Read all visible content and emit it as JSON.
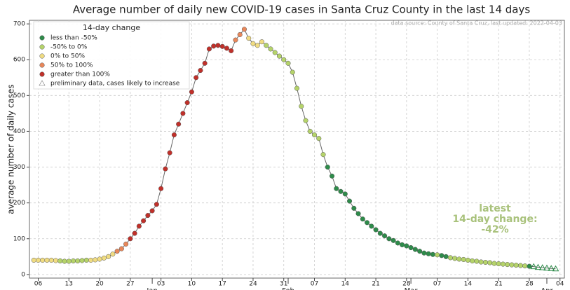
{
  "chart_data": {
    "type": "line",
    "title": "Average number of daily new COVID-19 cases in Santa Cruz County in the last 14 days",
    "source": "data source: County of Santa Cruz, last updated: 2022-04-03",
    "y_label": "average number of daily cases",
    "legend_title": "14-day change",
    "legend": [
      {
        "name": "less than -50%",
        "color": "#2e8b4a",
        "marker": "circle"
      },
      {
        "name": "-50% to 0%",
        "color": "#b5d36a",
        "marker": "circle"
      },
      {
        "name": "0% to 50%",
        "color": "#f0dc82",
        "marker": "circle"
      },
      {
        "name": "50% to 100%",
        "color": "#e8875a",
        "marker": "circle"
      },
      {
        "name": "greater than 100%",
        "color": "#c0302a",
        "marker": "circle"
      },
      {
        "name": "preliminary data, cases likely to increase",
        "color": "#2e8b4a",
        "marker": "triangle"
      }
    ],
    "annotation": [
      "latest",
      "14-day change:",
      "-42%"
    ],
    "annotation_color": "#a9c27c",
    "line_color": "#666666",
    "x": [
      "12-05",
      "12-06",
      "12-07",
      "12-08",
      "12-09",
      "12-10",
      "12-11",
      "12-12",
      "12-13",
      "12-14",
      "12-15",
      "12-16",
      "12-17",
      "12-18",
      "12-19",
      "12-20",
      "12-21",
      "12-22",
      "12-23",
      "12-24",
      "12-25",
      "12-26",
      "12-27",
      "12-28",
      "12-29",
      "12-30",
      "12-31",
      "01-01",
      "01-02",
      "01-03",
      "01-04",
      "01-05",
      "01-06",
      "01-07",
      "01-08",
      "01-09",
      "01-10",
      "01-11",
      "01-12",
      "01-13",
      "01-14",
      "01-15",
      "01-16",
      "01-17",
      "01-18",
      "01-19",
      "01-20",
      "01-21",
      "01-22",
      "01-23",
      "01-24",
      "01-25",
      "01-26",
      "01-27",
      "01-28",
      "01-29",
      "01-30",
      "01-31",
      "02-01",
      "02-02",
      "02-03",
      "02-04",
      "02-05",
      "02-06",
      "02-07",
      "02-08",
      "02-09",
      "02-10",
      "02-11",
      "02-12",
      "02-13",
      "02-14",
      "02-15",
      "02-16",
      "02-17",
      "02-18",
      "02-19",
      "02-20",
      "02-21",
      "02-22",
      "02-23",
      "02-24",
      "02-25",
      "02-26",
      "02-27",
      "02-28",
      "03-01",
      "03-02",
      "03-03",
      "03-04",
      "03-05",
      "03-06",
      "03-07",
      "03-08",
      "03-09",
      "03-10",
      "03-11",
      "03-12",
      "03-13",
      "03-14",
      "03-15",
      "03-16",
      "03-17",
      "03-18",
      "03-19",
      "03-20",
      "03-21",
      "03-22",
      "03-23",
      "03-24",
      "03-25",
      "03-26",
      "03-27",
      "03-28",
      "03-29",
      "03-30",
      "03-31",
      "04-01",
      "04-02",
      "04-03"
    ],
    "values": [
      40,
      40,
      40,
      40,
      40,
      39,
      38,
      37,
      37,
      38,
      38,
      39,
      40,
      40,
      41,
      43,
      46,
      50,
      57,
      65,
      72,
      85,
      100,
      115,
      135,
      150,
      165,
      178,
      196,
      240,
      295,
      340,
      390,
      420,
      450,
      480,
      510,
      550,
      570,
      590,
      630,
      638,
      640,
      637,
      632,
      625,
      655,
      670,
      685,
      660,
      645,
      640,
      650,
      640,
      630,
      620,
      610,
      600,
      590,
      565,
      520,
      470,
      430,
      400,
      390,
      380,
      335,
      300,
      275,
      240,
      232,
      225,
      205,
      185,
      170,
      155,
      145,
      135,
      125,
      115,
      108,
      100,
      95,
      88,
      83,
      80,
      75,
      70,
      65,
      60,
      58,
      56,
      55,
      53,
      50,
      47,
      45,
      43,
      42,
      40,
      38,
      37,
      35,
      34,
      33,
      31,
      30,
      29,
      28,
      27,
      26,
      25,
      24,
      23,
      22,
      20,
      19,
      18,
      17,
      16
    ],
    "classes": [
      2,
      2,
      2,
      2,
      2,
      2,
      1,
      1,
      1,
      1,
      1,
      1,
      1,
      2,
      2,
      2,
      2,
      2,
      2,
      3,
      3,
      3,
      4,
      4,
      4,
      4,
      4,
      4,
      4,
      4,
      4,
      4,
      4,
      4,
      4,
      4,
      4,
      4,
      4,
      4,
      4,
      4,
      4,
      4,
      4,
      4,
      3,
      3,
      3,
      2,
      2,
      2,
      2,
      1,
      1,
      1,
      1,
      1,
      1,
      1,
      1,
      1,
      1,
      1,
      1,
      1,
      1,
      0,
      0,
      0,
      0,
      0,
      0,
      0,
      0,
      0,
      0,
      0,
      0,
      0,
      0,
      0,
      0,
      0,
      0,
      0,
      0,
      0,
      0,
      0,
      0,
      0,
      1,
      0,
      0,
      1,
      1,
      1,
      1,
      1,
      1,
      1,
      1,
      1,
      1,
      1,
      1,
      1,
      1,
      1,
      1,
      1,
      1,
      0,
      5,
      5,
      5,
      5,
      5,
      5
    ],
    "xlim": [
      "12-04",
      "04-05"
    ],
    "xticks": [
      {
        "value": "12-06",
        "label": "06"
      },
      {
        "value": "12-13",
        "label": "13"
      },
      {
        "value": "12-20",
        "label": "20"
      },
      {
        "value": "12-27",
        "label": "27"
      },
      {
        "value": "01-03",
        "label": "03"
      },
      {
        "value": "01-10",
        "label": "10"
      },
      {
        "value": "01-17",
        "label": "17"
      },
      {
        "value": "01-24",
        "label": "24"
      },
      {
        "value": "01-31",
        "label": "31"
      },
      {
        "value": "02-07",
        "label": "07"
      },
      {
        "value": "02-14",
        "label": "14"
      },
      {
        "value": "02-21",
        "label": "21"
      },
      {
        "value": "02-28",
        "label": "28"
      },
      {
        "value": "03-07",
        "label": "07"
      },
      {
        "value": "03-14",
        "label": "14"
      },
      {
        "value": "03-21",
        "label": "21"
      },
      {
        "value": "03-28",
        "label": "28"
      },
      {
        "value": "04-04",
        "label": "04"
      }
    ],
    "xticks_major": [
      {
        "value": "01-01",
        "label": "Jan"
      },
      {
        "value": "02-01",
        "label": "Feb"
      },
      {
        "value": "03-01",
        "label": "Mar"
      },
      {
        "value": "04-01",
        "label": "Apr"
      }
    ],
    "ylim": [
      -10,
      710
    ],
    "yticks": [
      0,
      100,
      200,
      300,
      400,
      500,
      600,
      700
    ],
    "grid": true
  }
}
